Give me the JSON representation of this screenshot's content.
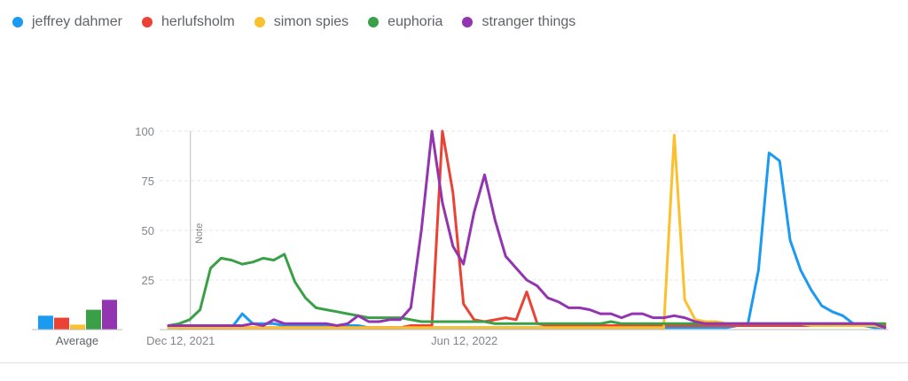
{
  "legend": {
    "items": [
      {
        "label": "jeffrey dahmer",
        "color": "#1a9af0"
      },
      {
        "label": "herlufsholm",
        "color": "#ea4335"
      },
      {
        "label": "simon spies",
        "color": "#fbc02d"
      },
      {
        "label": "euphoria",
        "color": "#3aa047"
      },
      {
        "label": "stranger things",
        "color": "#9334b0"
      }
    ]
  },
  "chart_data": {
    "type": "line",
    "title": "",
    "xlabel": "",
    "ylabel": "",
    "ylim": [
      0,
      100
    ],
    "yticks": [
      "100",
      "75",
      "50",
      "25"
    ],
    "x_tick_labels": [
      {
        "label": "Dec 12, 2021",
        "index": 2
      },
      {
        "label": "Jun 12, 2022",
        "index": 28
      }
    ],
    "annotation": {
      "label": "Note",
      "index": 2
    },
    "average_label": "Average",
    "averages": [
      7,
      6,
      2.5,
      10,
      15
    ],
    "series": [
      {
        "name": "jeffrey dahmer",
        "color": "#1a9af0",
        "values": [
          1,
          1,
          1,
          1,
          1,
          1,
          1,
          8,
          3,
          3,
          3,
          2,
          2,
          2,
          2,
          2,
          2,
          2,
          2,
          1,
          1,
          1,
          1,
          1,
          1,
          1,
          1,
          1,
          1,
          1,
          1,
          1,
          1,
          1,
          1,
          1,
          1,
          1,
          1,
          1,
          1,
          1,
          1,
          1,
          1,
          1,
          1,
          1,
          1,
          1,
          1,
          1,
          1,
          1,
          2,
          3,
          30,
          89,
          85,
          45,
          30,
          20,
          12,
          9,
          7,
          3,
          2,
          1,
          1
        ]
      },
      {
        "name": "herlufsholm",
        "color": "#ea4335",
        "values": [
          2,
          1,
          1,
          1,
          1,
          1,
          1,
          1,
          1,
          1,
          1,
          1,
          1,
          1,
          1,
          1,
          1,
          1,
          1,
          1,
          1,
          1,
          1,
          2,
          2,
          2,
          100,
          69,
          13,
          5,
          4,
          5,
          6,
          5,
          19,
          3,
          2,
          2,
          2,
          2,
          2,
          2,
          2,
          2,
          2,
          2,
          2,
          2,
          2,
          2,
          2,
          2,
          2,
          2,
          2,
          2,
          2,
          2,
          2,
          2,
          2,
          2,
          2,
          2,
          2,
          2,
          2,
          2,
          2
        ]
      },
      {
        "name": "simon spies",
        "color": "#fbc02d",
        "values": [
          1,
          1,
          1,
          1,
          1,
          1,
          1,
          1,
          1,
          1,
          1,
          1,
          1,
          1,
          1,
          1,
          1,
          1,
          1,
          1,
          1,
          1,
          1,
          1,
          1,
          1,
          1,
          1,
          1,
          1,
          1,
          1,
          1,
          1,
          1,
          1,
          1,
          1,
          1,
          1,
          1,
          1,
          1,
          1,
          1,
          1,
          1,
          1,
          98,
          15,
          5,
          4,
          4,
          3,
          3,
          3,
          3,
          3,
          3,
          3,
          3,
          2,
          2,
          2,
          2,
          2,
          2,
          2,
          1
        ]
      },
      {
        "name": "euphoria",
        "color": "#3aa047",
        "values": [
          2,
          3,
          5,
          10,
          31,
          36,
          35,
          33,
          34,
          36,
          35,
          38,
          24,
          16,
          11,
          10,
          9,
          8,
          7,
          6,
          6,
          6,
          6,
          5,
          4,
          4,
          4,
          4,
          4,
          4,
          4,
          3,
          3,
          3,
          3,
          3,
          3,
          3,
          3,
          3,
          3,
          3,
          4,
          3,
          3,
          3,
          3,
          3,
          3,
          3,
          3,
          3,
          3,
          3,
          3,
          3,
          3,
          3,
          3,
          3,
          3,
          3,
          3,
          3,
          3,
          3,
          3,
          3,
          3
        ]
      },
      {
        "name": "stranger things",
        "color": "#9334b0",
        "values": [
          2,
          2,
          2,
          2,
          2,
          2,
          2,
          2,
          3,
          2,
          5,
          3,
          3,
          3,
          3,
          3,
          2,
          3,
          7,
          4,
          4,
          5,
          5,
          11,
          50,
          100,
          64,
          42,
          33,
          59,
          78,
          55,
          37,
          31,
          25,
          22,
          16,
          14,
          11,
          11,
          10,
          8,
          8,
          6,
          8,
          8,
          6,
          6,
          7,
          6,
          4,
          3,
          3,
          3,
          3,
          3,
          3,
          3,
          3,
          3,
          3,
          3,
          3,
          3,
          3,
          3,
          3,
          3,
          1
        ]
      }
    ]
  }
}
